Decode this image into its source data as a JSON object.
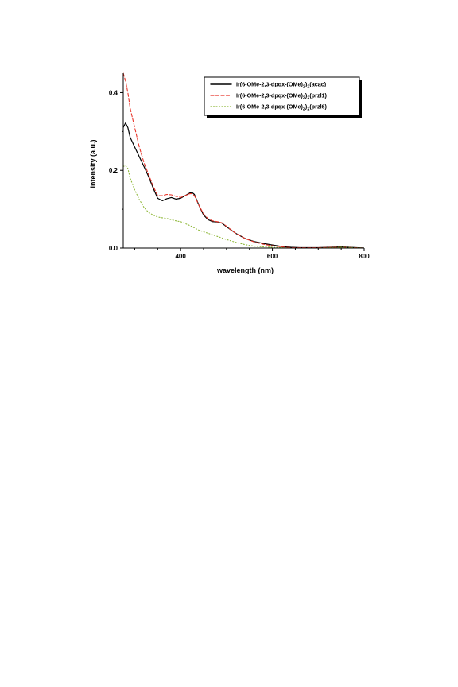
{
  "chart_data": {
    "type": "line",
    "xlabel": "wavelength (nm)",
    "ylabel": "intensity (a.u.)",
    "xlim": [
      275,
      800
    ],
    "ylim": [
      0,
      0.45
    ],
    "xticks": [
      400,
      600,
      800
    ],
    "yticks": [
      0.0,
      0.2,
      0.4
    ],
    "xtick_labels": [
      "400",
      "600",
      "800"
    ],
    "ytick_labels": [
      "0.0",
      "0.2",
      "0.4"
    ],
    "grid": false,
    "legend_position": "top-right",
    "series": [
      {
        "name": "Ir(6-OMe-2,3-dpqx-(OMe)2)2(acac)",
        "color": "#000000",
        "style": "solid",
        "x": [
          275,
          280,
          285,
          290,
          300,
          310,
          320,
          330,
          340,
          350,
          360,
          370,
          380,
          390,
          400,
          410,
          420,
          425,
          430,
          440,
          450,
          460,
          470,
          480,
          490,
          500,
          520,
          540,
          560,
          580,
          600,
          620,
          640,
          660,
          700,
          750,
          800
        ],
        "y": [
          0.31,
          0.322,
          0.31,
          0.285,
          0.26,
          0.235,
          0.21,
          0.185,
          0.155,
          0.128,
          0.122,
          0.127,
          0.13,
          0.126,
          0.128,
          0.135,
          0.142,
          0.143,
          0.138,
          0.11,
          0.085,
          0.073,
          0.068,
          0.067,
          0.064,
          0.055,
          0.038,
          0.025,
          0.017,
          0.012,
          0.008,
          0.004,
          0.002,
          0.001,
          0.001,
          0.003,
          0.0
        ]
      },
      {
        "name": "Ir(6-OMe-2,3-dpqx-(OMe)2)2(przl1)",
        "color": "#e8352a",
        "style": "dashed",
        "x": [
          275,
          280,
          285,
          290,
          300,
          310,
          320,
          330,
          340,
          350,
          360,
          370,
          380,
          390,
          400,
          410,
          420,
          425,
          430,
          440,
          450,
          460,
          470,
          480,
          490,
          500,
          520,
          540,
          560,
          580,
          600,
          620,
          640,
          660,
          700,
          750,
          800
        ],
        "y": [
          0.45,
          0.43,
          0.4,
          0.36,
          0.31,
          0.26,
          0.22,
          0.19,
          0.16,
          0.135,
          0.135,
          0.138,
          0.137,
          0.133,
          0.13,
          0.135,
          0.14,
          0.14,
          0.135,
          0.11,
          0.088,
          0.075,
          0.07,
          0.068,
          0.065,
          0.056,
          0.038,
          0.025,
          0.016,
          0.01,
          0.006,
          0.003,
          0.001,
          0.001,
          0.001,
          0.002,
          0.0
        ]
      },
      {
        "name": "Ir(6-OMe-2,3-dpqx-(OMe)2)2(przl6)",
        "color": "#8fb83a",
        "style": "dotted",
        "x": [
          275,
          280,
          285,
          290,
          300,
          310,
          320,
          330,
          340,
          350,
          360,
          370,
          380,
          390,
          400,
          410,
          420,
          430,
          440,
          450,
          460,
          470,
          480,
          490,
          500,
          520,
          540,
          560,
          580,
          600,
          620,
          640,
          660,
          700,
          750,
          800
        ],
        "y": [
          0.21,
          0.212,
          0.205,
          0.18,
          0.15,
          0.125,
          0.105,
          0.092,
          0.085,
          0.08,
          0.078,
          0.076,
          0.073,
          0.07,
          0.068,
          0.063,
          0.058,
          0.052,
          0.046,
          0.042,
          0.038,
          0.034,
          0.03,
          0.026,
          0.022,
          0.015,
          0.009,
          0.005,
          0.003,
          0.002,
          0.001,
          0.0,
          0.0,
          0.0,
          0.002,
          0.0
        ]
      }
    ]
  },
  "legend": {
    "entries": [
      {
        "prefix": "Ir(6-OMe-2,3-dpqx-(OMe)",
        "sub1": "2",
        "mid": ")",
        "sub2": "2",
        "suffix": "(acac)"
      },
      {
        "prefix": "Ir(6-OMe-2,3-dpqx-(OMe)",
        "sub1": "2",
        "mid": ")",
        "sub2": "2",
        "suffix": "(przl1)"
      },
      {
        "prefix": "Ir(6-OMe-2,3-dpqx-(OMe)",
        "sub1": "2",
        "mid": ")",
        "sub2": "2",
        "suffix": "(przl6)"
      }
    ]
  }
}
